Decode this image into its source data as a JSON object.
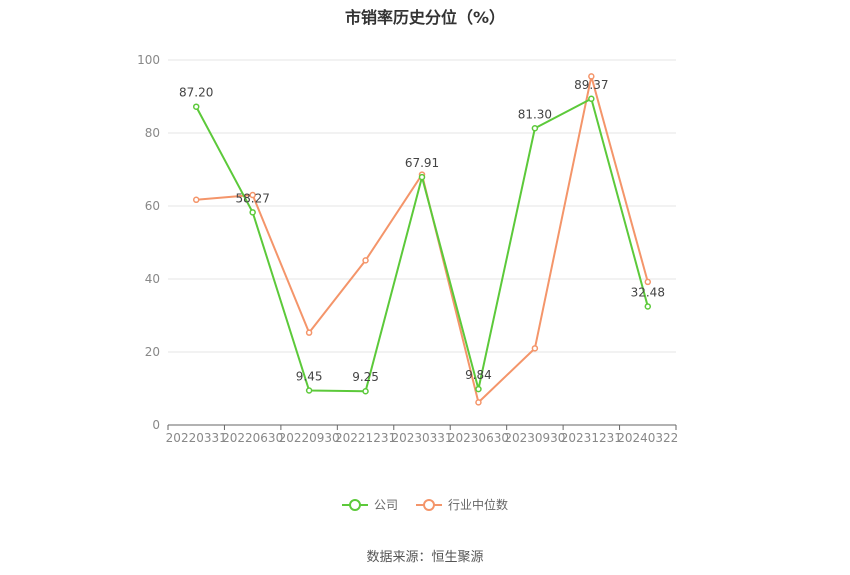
{
  "title": "市销率历史分位（%）",
  "source": "数据来源：恒生聚源",
  "chart_data": {
    "type": "line",
    "title": "市销率历史分位（%）",
    "categories": [
      "20220331",
      "20220630",
      "20220930",
      "20221231",
      "20230331",
      "20230630",
      "20230930",
      "20231231",
      "20240322"
    ],
    "ylim": [
      0,
      100
    ],
    "yticks": [
      0,
      20,
      40,
      60,
      80,
      100
    ],
    "grid": true,
    "legend_position": "bottom",
    "series": [
      {
        "name": "公司",
        "color": "#5cc93a",
        "values": [
          87.2,
          58.27,
          9.45,
          9.25,
          67.91,
          9.84,
          81.3,
          89.37,
          32.48
        ],
        "labels": [
          "87.20",
          "58.27",
          "9.45",
          "9.25",
          "67.91",
          "9.84",
          "81.30",
          "89.37",
          "32.48"
        ]
      },
      {
        "name": "行业中位数",
        "color": "#f4956a",
        "values": [
          61.7,
          63.0,
          25.3,
          45.1,
          68.6,
          6.2,
          21.0,
          95.5,
          39.2
        ]
      }
    ]
  }
}
